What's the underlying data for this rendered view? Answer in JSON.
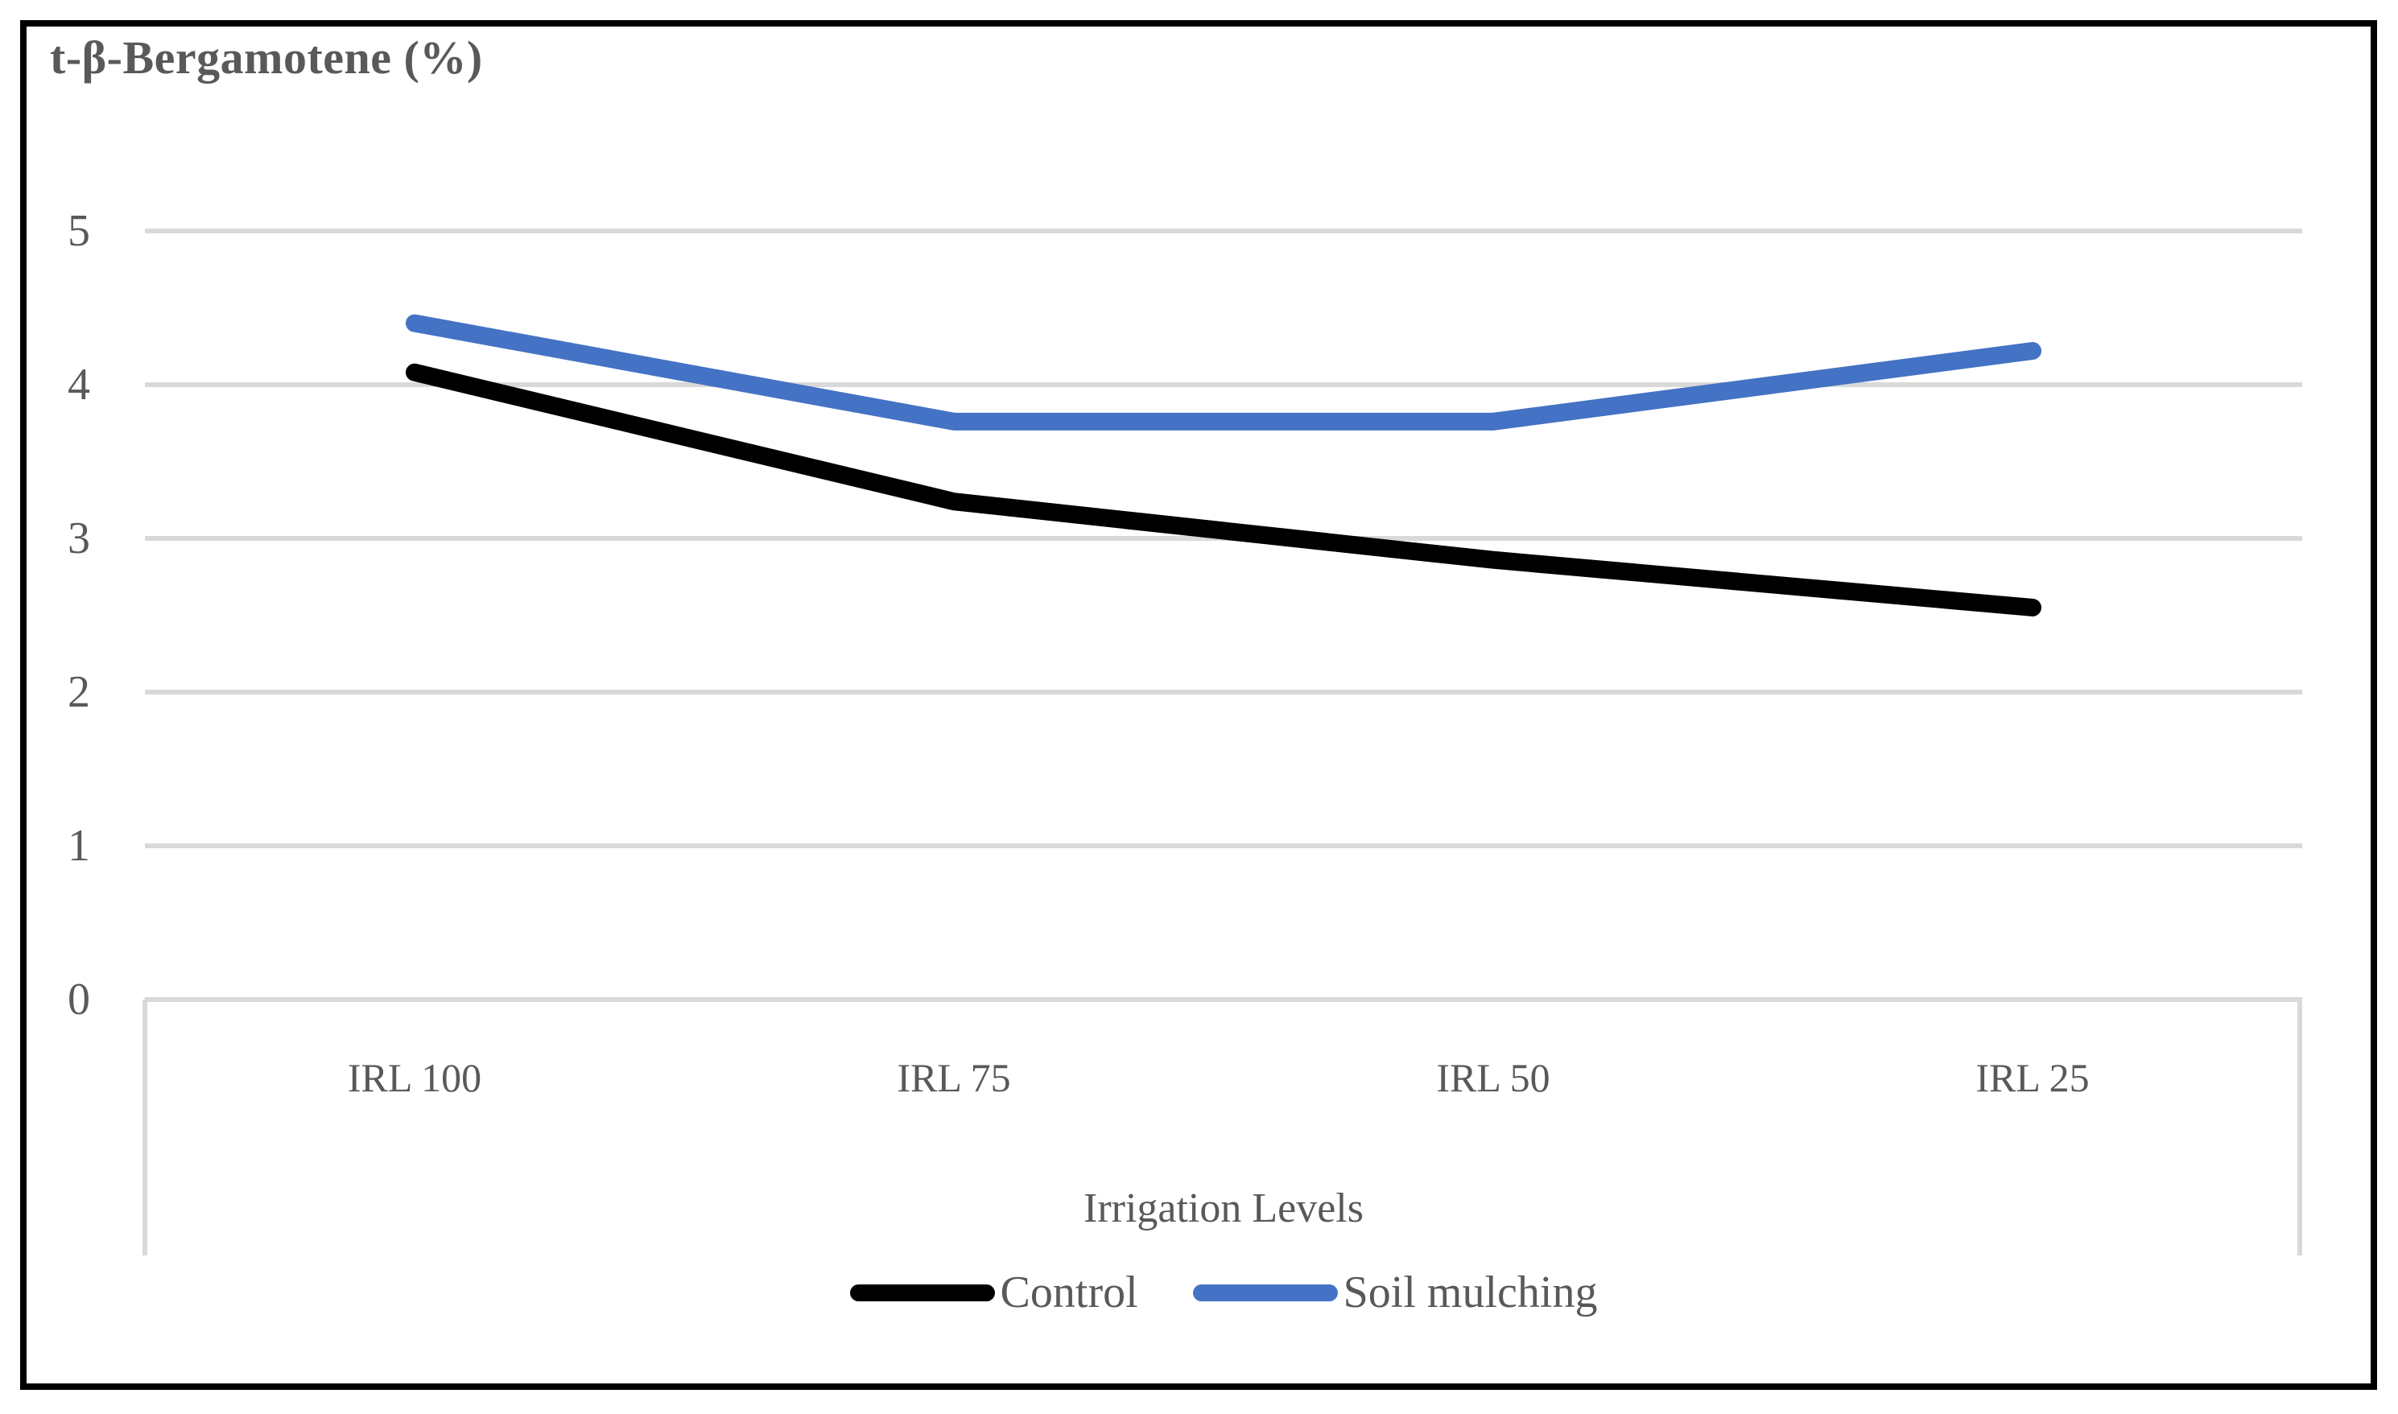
{
  "figure": {
    "title": "t-β-Bergamotene (%)"
  },
  "chart_data": {
    "type": "line",
    "title": "t-β-Bergamotene (%)",
    "categories": [
      "IRL 100",
      "IRL 75",
      "IRL 50",
      "IRL 25"
    ],
    "series": [
      {
        "name": "Control",
        "color": "#000000",
        "values": [
          4.08,
          3.24,
          2.86,
          2.55
        ]
      },
      {
        "name": "Soil mulching",
        "color": "#4472C4",
        "values": [
          4.4,
          3.76,
          3.76,
          4.22
        ]
      }
    ],
    "xlabel": "Irrigation Levels",
    "ylabel": "",
    "ylim": [
      0,
      5
    ],
    "yticks": [
      5,
      4,
      3,
      2,
      1,
      0
    ],
    "grid": true,
    "legend_position": "bottom",
    "text_color": "#595959",
    "gridline_color": "#D9D9D9",
    "line_width": 22
  }
}
